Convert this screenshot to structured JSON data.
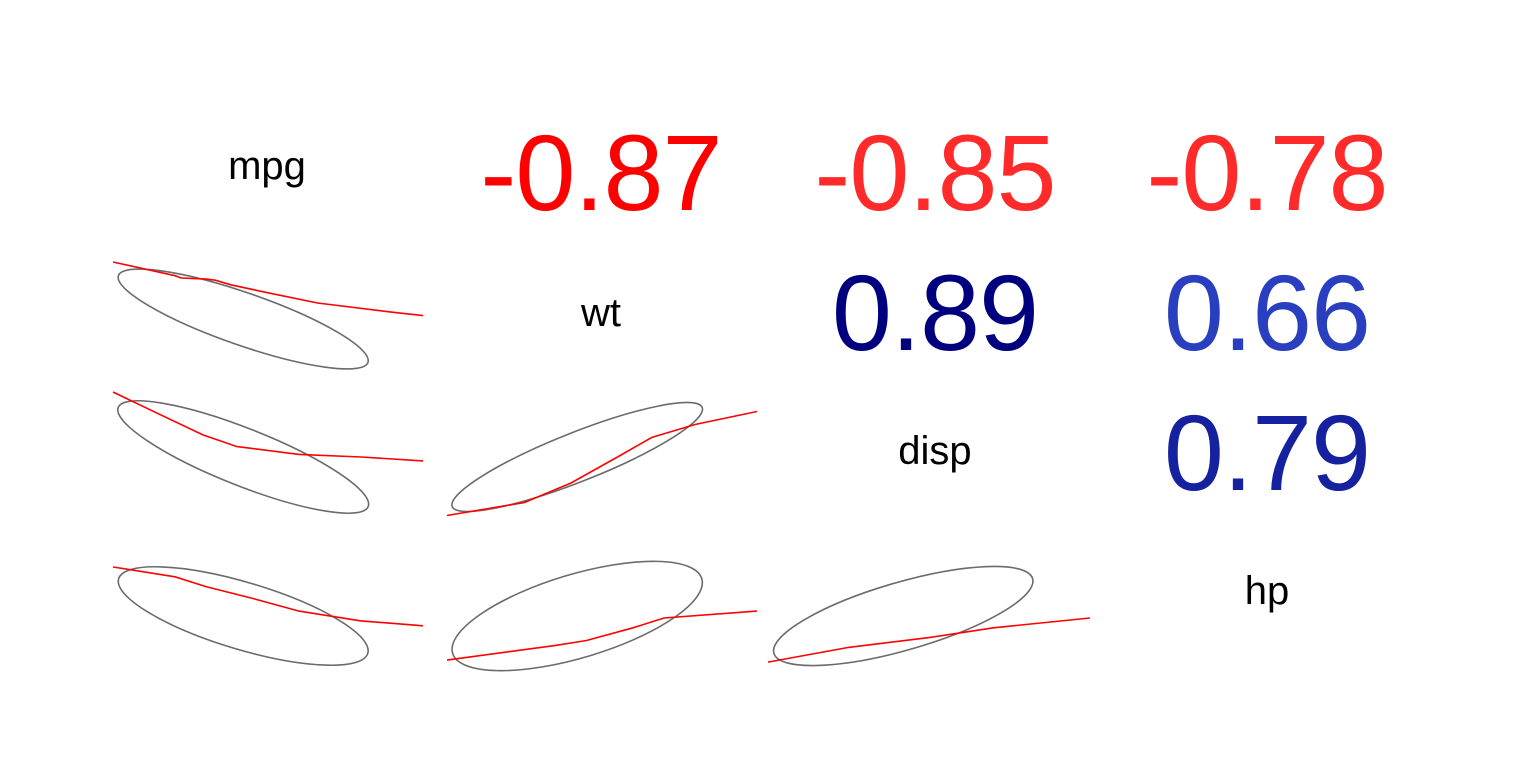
{
  "chart_data": {
    "type": "correlation_matrix",
    "variables": [
      "mpg",
      "wt",
      "disp",
      "hp"
    ],
    "upper_correlations": [
      {
        "row": 0,
        "col": 1,
        "value": "-0.87",
        "color": "#ff0000"
      },
      {
        "row": 0,
        "col": 2,
        "value": "-0.85",
        "color": "#ff2a2a"
      },
      {
        "row": 0,
        "col": 3,
        "value": "-0.78",
        "color": "#ff2a2a"
      },
      {
        "row": 1,
        "col": 2,
        "value": "0.89",
        "color": "#00007f"
      },
      {
        "row": 1,
        "col": 3,
        "value": "0.66",
        "color": "#2a3fbf"
      },
      {
        "row": 2,
        "col": 3,
        "value": "0.79",
        "color": "#15219f"
      }
    ],
    "lower_panels": [
      {
        "row": 1,
        "col": 0,
        "pair": [
          "mpg",
          "wt"
        ],
        "correlation": -0.87,
        "smooth": [
          [
            0.0,
            1.0
          ],
          [
            0.2,
            0.88
          ],
          [
            0.22,
            0.86
          ],
          [
            0.3,
            0.85
          ],
          [
            0.33,
            0.84
          ],
          [
            0.38,
            0.8
          ],
          [
            0.5,
            0.73
          ],
          [
            0.66,
            0.64
          ],
          [
            0.9,
            0.56
          ],
          [
            1.0,
            0.53
          ]
        ]
      },
      {
        "row": 2,
        "col": 0,
        "pair": [
          "mpg",
          "disp"
        ],
        "correlation": -0.85,
        "smooth": [
          [
            0.0,
            1.0
          ],
          [
            0.14,
            0.84
          ],
          [
            0.29,
            0.67
          ],
          [
            0.4,
            0.58
          ],
          [
            0.6,
            0.52
          ],
          [
            0.8,
            0.5
          ],
          [
            1.0,
            0.47
          ]
        ]
      },
      {
        "row": 2,
        "col": 1,
        "pair": [
          "wt",
          "disp"
        ],
        "correlation": 0.89,
        "smooth": [
          [
            0.0,
            0.05
          ],
          [
            0.25,
            0.15
          ],
          [
            0.4,
            0.3
          ],
          [
            0.55,
            0.5
          ],
          [
            0.66,
            0.65
          ],
          [
            0.8,
            0.75
          ],
          [
            1.0,
            0.85
          ]
        ]
      },
      {
        "row": 3,
        "col": 0,
        "pair": [
          "mpg",
          "hp"
        ],
        "correlation": -0.78,
        "smooth": [
          [
            0.0,
            1.0
          ],
          [
            0.2,
            0.9
          ],
          [
            0.3,
            0.8
          ],
          [
            0.45,
            0.68
          ],
          [
            0.6,
            0.55
          ],
          [
            0.8,
            0.45
          ],
          [
            1.0,
            0.4
          ]
        ]
      },
      {
        "row": 3,
        "col": 1,
        "pair": [
          "wt",
          "hp"
        ],
        "correlation": 0.66,
        "smooth": [
          [
            0.0,
            0.05
          ],
          [
            0.35,
            0.2
          ],
          [
            0.45,
            0.25
          ],
          [
            0.6,
            0.38
          ],
          [
            0.7,
            0.48
          ],
          [
            1.0,
            0.55
          ]
        ]
      },
      {
        "row": 3,
        "col": 2,
        "pair": [
          "disp",
          "hp"
        ],
        "correlation": 0.79,
        "smooth": [
          [
            0.0,
            0.03
          ],
          [
            0.25,
            0.18
          ],
          [
            0.5,
            0.28
          ],
          [
            0.7,
            0.38
          ],
          [
            1.0,
            0.48
          ]
        ]
      }
    ],
    "ellipse_color": "#6b6b6b",
    "smooth_color": "#ff0000",
    "grid": false
  }
}
